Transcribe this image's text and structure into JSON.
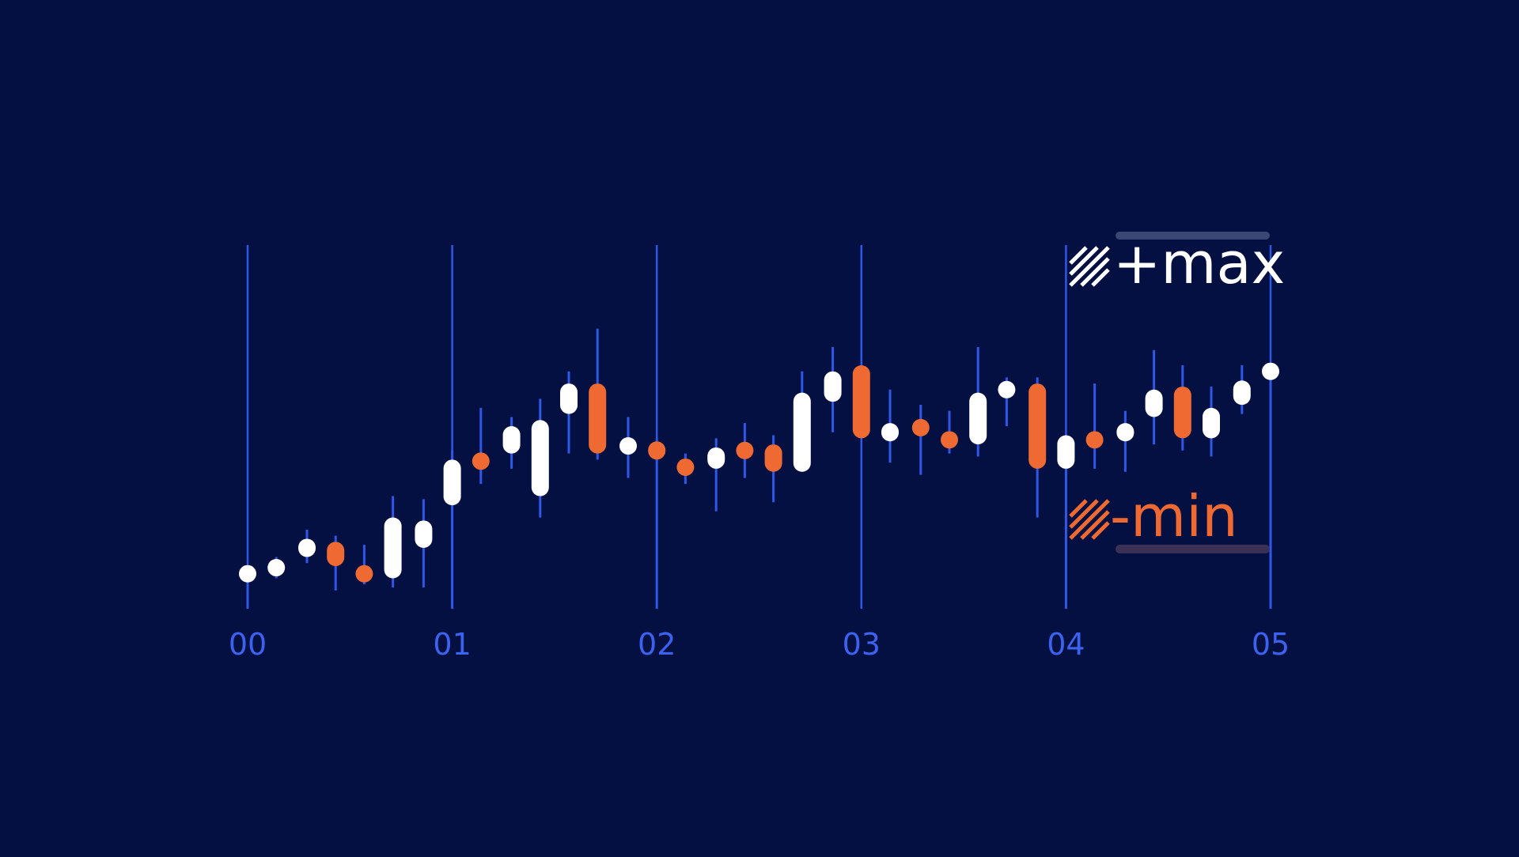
{
  "chart_data": {
    "type": "candlestick",
    "colors": {
      "background": "#031041",
      "grid": "#2f57e8",
      "up": "#ffffff",
      "down": "#ee6a32",
      "tick_text": "#3c63f0",
      "bar_top": "#3a4675",
      "bar_bottom": "#3a2f55"
    },
    "x_ticks": [
      "00",
      "01",
      "02",
      "03",
      "04",
      "05"
    ],
    "x_range": [
      0,
      5
    ],
    "y_range": [
      0,
      100
    ],
    "grid": "vertical",
    "legend_position": "top-right",
    "legend": {
      "max_label": "+max",
      "min_label": "-min",
      "max_icon": "hatch-white-icon",
      "min_icon": "hatch-orange-icon"
    },
    "candles": [
      {
        "x": 0.0,
        "open": 11,
        "close": 12,
        "high": 12,
        "low": 0
      },
      {
        "x": 0.14,
        "open": 12,
        "close": 15,
        "high": 17,
        "low": 10
      },
      {
        "x": 0.29,
        "open": 17,
        "close": 23,
        "high": 26,
        "low": 15
      },
      {
        "x": 0.43,
        "open": 22,
        "close": 14,
        "high": 24,
        "low": 6
      },
      {
        "x": 0.57,
        "open": 13,
        "close": 10,
        "high": 21,
        "low": 8
      },
      {
        "x": 0.71,
        "open": 10,
        "close": 30,
        "high": 37,
        "low": 7
      },
      {
        "x": 0.86,
        "open": 20,
        "close": 29,
        "high": 36,
        "low": 7
      },
      {
        "x": 1.0,
        "open": 34,
        "close": 49,
        "high": 52,
        "low": 0
      },
      {
        "x": 1.14,
        "open": 50,
        "close": 47,
        "high": 66,
        "low": 41
      },
      {
        "x": 1.29,
        "open": 51,
        "close": 60,
        "high": 63,
        "low": 46
      },
      {
        "x": 1.43,
        "open": 37,
        "close": 62,
        "high": 69,
        "low": 30
      },
      {
        "x": 1.57,
        "open": 64,
        "close": 74,
        "high": 78,
        "low": 51
      },
      {
        "x": 1.71,
        "open": 74,
        "close": 51,
        "high": 92,
        "low": 49
      },
      {
        "x": 1.86,
        "open": 51,
        "close": 56,
        "high": 63,
        "low": 43
      },
      {
        "x": 2.0,
        "open": 55,
        "close": 49,
        "high": 56,
        "low": 0
      },
      {
        "x": 2.14,
        "open": 47,
        "close": 46,
        "high": 51,
        "low": 41
      },
      {
        "x": 2.29,
        "open": 46,
        "close": 53,
        "high": 56,
        "low": 32
      },
      {
        "x": 2.43,
        "open": 53,
        "close": 51,
        "high": 61,
        "low": 43
      },
      {
        "x": 2.57,
        "open": 54,
        "close": 45,
        "high": 57,
        "low": 35
      },
      {
        "x": 2.71,
        "open": 45,
        "close": 71,
        "high": 78,
        "low": 45
      },
      {
        "x": 2.86,
        "open": 68,
        "close": 78,
        "high": 86,
        "low": 58
      },
      {
        "x": 3.0,
        "open": 80,
        "close": 56,
        "high": 100,
        "low": 0
      },
      {
        "x": 3.14,
        "open": 55,
        "close": 61,
        "high": 72,
        "low": 48
      },
      {
        "x": 3.29,
        "open": 61,
        "close": 58,
        "high": 67,
        "low": 44
      },
      {
        "x": 3.43,
        "open": 57,
        "close": 54,
        "high": 65,
        "low": 51
      },
      {
        "x": 3.57,
        "open": 54,
        "close": 71,
        "high": 86,
        "low": 50
      },
      {
        "x": 3.71,
        "open": 71,
        "close": 73,
        "high": 76,
        "low": 60
      },
      {
        "x": 3.86,
        "open": 74,
        "close": 46,
        "high": 76,
        "low": 30
      },
      {
        "x": 4.0,
        "open": 46,
        "close": 57,
        "high": 57,
        "low": 0
      },
      {
        "x": 4.14,
        "open": 57,
        "close": 54,
        "high": 74,
        "low": 46
      },
      {
        "x": 4.29,
        "open": 55,
        "close": 61,
        "high": 65,
        "low": 45
      },
      {
        "x": 4.43,
        "open": 63,
        "close": 72,
        "high": 85,
        "low": 54
      },
      {
        "x": 4.57,
        "open": 73,
        "close": 56,
        "high": 80,
        "low": 52
      },
      {
        "x": 4.71,
        "open": 56,
        "close": 66,
        "high": 73,
        "low": 50
      },
      {
        "x": 4.86,
        "open": 67,
        "close": 75,
        "high": 80,
        "low": 64
      },
      {
        "x": 5.0,
        "open": 77,
        "close": 79,
        "high": 79,
        "low": 0
      }
    ]
  }
}
